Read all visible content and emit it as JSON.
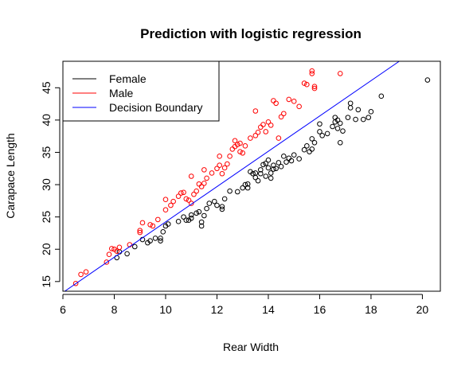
{
  "chart_data": {
    "type": "scatter",
    "title": "Prediction with logistic regression",
    "xlabel": "Rear Width",
    "ylabel": "Carapace Length",
    "xlim": [
      6.0,
      20.7
    ],
    "ylim": [
      13.5,
      49.1
    ],
    "xticks": [
      6,
      8,
      10,
      12,
      14,
      16,
      18,
      20
    ],
    "yticks": [
      15,
      20,
      25,
      30,
      35,
      40,
      45
    ],
    "legend_position": "top-left",
    "grid": false,
    "series": [
      {
        "name": "Female",
        "color": "#000000",
        "marker": "open-circle",
        "points": [
          [
            8.1,
            18.7
          ],
          [
            8.2,
            19.6
          ],
          [
            8.5,
            19.3
          ],
          [
            8.8,
            20.4
          ],
          [
            9.1,
            21.5
          ],
          [
            9.3,
            21.0
          ],
          [
            9.4,
            21.3
          ],
          [
            9.6,
            21.7
          ],
          [
            9.8,
            21.3
          ],
          [
            9.8,
            21.7
          ],
          [
            9.9,
            22.7
          ],
          [
            10.0,
            23.6
          ],
          [
            10.1,
            23.9
          ],
          [
            10.5,
            24.3
          ],
          [
            10.7,
            25.0
          ],
          [
            10.8,
            24.5
          ],
          [
            10.9,
            24.5
          ],
          [
            11.0,
            25.3
          ],
          [
            11.0,
            24.8
          ],
          [
            11.2,
            25.6
          ],
          [
            11.3,
            25.8
          ],
          [
            11.4,
            24.2
          ],
          [
            11.4,
            23.6
          ],
          [
            11.5,
            25.2
          ],
          [
            11.6,
            26.3
          ],
          [
            11.7,
            27.1
          ],
          [
            11.9,
            27.4
          ],
          [
            12.0,
            26.8
          ],
          [
            12.2,
            26.2
          ],
          [
            12.2,
            26.6
          ],
          [
            12.3,
            27.8
          ],
          [
            12.5,
            29.0
          ],
          [
            12.8,
            28.9
          ],
          [
            13.0,
            29.5
          ],
          [
            13.1,
            30.0
          ],
          [
            13.2,
            30.1
          ],
          [
            13.2,
            29.5
          ],
          [
            13.3,
            32.0
          ],
          [
            13.4,
            31.7
          ],
          [
            13.5,
            31.8
          ],
          [
            13.5,
            31.1
          ],
          [
            13.6,
            30.6
          ],
          [
            13.7,
            31.7
          ],
          [
            13.7,
            32.3
          ],
          [
            13.8,
            33.1
          ],
          [
            13.9,
            31.3
          ],
          [
            13.9,
            33.3
          ],
          [
            14.0,
            32.6
          ],
          [
            14.0,
            33.8
          ],
          [
            14.1,
            31.0
          ],
          [
            14.1,
            31.8
          ],
          [
            14.2,
            32.4
          ],
          [
            14.2,
            33.0
          ],
          [
            14.3,
            32.5
          ],
          [
            14.4,
            33.4
          ],
          [
            14.5,
            32.8
          ],
          [
            14.6,
            34.4
          ],
          [
            14.7,
            33.5
          ],
          [
            14.8,
            34.1
          ],
          [
            15.0,
            34.6
          ],
          [
            15.2,
            34.0
          ],
          [
            15.4,
            35.4
          ],
          [
            15.5,
            36.0
          ],
          [
            15.6,
            35.1
          ],
          [
            15.7,
            37.1
          ],
          [
            15.8,
            36.5
          ],
          [
            16.0,
            38.2
          ],
          [
            16.0,
            39.4
          ],
          [
            16.1,
            37.6
          ],
          [
            16.3,
            37.9
          ],
          [
            16.5,
            39.0
          ],
          [
            16.6,
            40.4
          ],
          [
            16.7,
            40.0
          ],
          [
            16.7,
            38.7
          ],
          [
            16.8,
            39.5
          ],
          [
            16.8,
            36.5
          ],
          [
            16.9,
            38.3
          ],
          [
            17.1,
            40.4
          ],
          [
            17.2,
            42.6
          ],
          [
            17.2,
            41.9
          ],
          [
            17.4,
            40.1
          ],
          [
            17.5,
            41.6
          ],
          [
            17.7,
            40.1
          ],
          [
            17.9,
            40.4
          ],
          [
            18.0,
            41.3
          ],
          [
            18.4,
            43.7
          ],
          [
            20.2,
            46.2
          ],
          [
            16.6,
            39.7
          ],
          [
            15.7,
            35.5
          ],
          [
            14.9,
            33.7
          ]
        ]
      },
      {
        "name": "Male",
        "color": "#ff0000",
        "marker": "open-circle",
        "points": [
          [
            6.5,
            14.7
          ],
          [
            6.7,
            16.1
          ],
          [
            6.9,
            16.5
          ],
          [
            7.7,
            18.0
          ],
          [
            7.8,
            19.2
          ],
          [
            7.9,
            20.1
          ],
          [
            8.0,
            20.0
          ],
          [
            8.1,
            19.7
          ],
          [
            8.2,
            20.3
          ],
          [
            8.6,
            20.7
          ],
          [
            9.0,
            22.9
          ],
          [
            9.0,
            22.6
          ],
          [
            9.1,
            24.1
          ],
          [
            9.4,
            23.8
          ],
          [
            9.5,
            23.6
          ],
          [
            9.7,
            24.6
          ],
          [
            10.0,
            26.1
          ],
          [
            10.0,
            27.7
          ],
          [
            10.2,
            26.8
          ],
          [
            10.3,
            27.4
          ],
          [
            10.5,
            28.2
          ],
          [
            10.6,
            28.7
          ],
          [
            10.7,
            28.8
          ],
          [
            10.8,
            27.8
          ],
          [
            10.9,
            27.6
          ],
          [
            11.0,
            27.1
          ],
          [
            11.1,
            28.5
          ],
          [
            11.2,
            29.0
          ],
          [
            11.3,
            30.1
          ],
          [
            11.4,
            29.7
          ],
          [
            11.5,
            30.2
          ],
          [
            11.6,
            31.0
          ],
          [
            11.8,
            31.8
          ],
          [
            12.0,
            32.5
          ],
          [
            12.1,
            33.0
          ],
          [
            12.2,
            31.7
          ],
          [
            12.3,
            32.6
          ],
          [
            12.4,
            33.2
          ],
          [
            12.5,
            34.4
          ],
          [
            12.6,
            35.5
          ],
          [
            12.7,
            35.9
          ],
          [
            12.8,
            36.2
          ],
          [
            12.9,
            36.4
          ],
          [
            12.9,
            35.1
          ],
          [
            13.0,
            34.9
          ],
          [
            13.1,
            36.0
          ],
          [
            13.3,
            37.2
          ],
          [
            13.5,
            37.6
          ],
          [
            13.6,
            38.1
          ],
          [
            13.7,
            38.9
          ],
          [
            13.8,
            39.3
          ],
          [
            14.0,
            39.7
          ],
          [
            14.1,
            39.2
          ],
          [
            14.2,
            43.0
          ],
          [
            14.3,
            42.6
          ],
          [
            14.5,
            40.5
          ],
          [
            14.6,
            41.0
          ],
          [
            14.8,
            43.2
          ],
          [
            15.0,
            42.9
          ],
          [
            15.2,
            42.1
          ],
          [
            15.4,
            45.7
          ],
          [
            15.5,
            45.5
          ],
          [
            15.7,
            47.2
          ],
          [
            15.7,
            47.6
          ],
          [
            15.8,
            45.2
          ],
          [
            15.8,
            44.9
          ],
          [
            16.8,
            47.2
          ],
          [
            11.0,
            31.3
          ],
          [
            11.5,
            32.3
          ],
          [
            12.1,
            34.4
          ],
          [
            13.5,
            41.4
          ],
          [
            12.7,
            36.8
          ],
          [
            14.4,
            37.2
          ],
          [
            13.9,
            38.2
          ]
        ]
      },
      {
        "name": "Decision Boundary",
        "color": "#0000ff",
        "type": "line",
        "points": [
          [
            6.0,
            13.3
          ],
          [
            19.1,
            49.1
          ]
        ]
      }
    ]
  }
}
